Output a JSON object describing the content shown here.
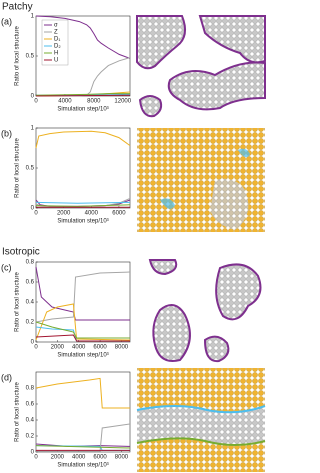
{
  "chart_data": [
    {
      "type": "line",
      "section": "Patchy",
      "panel_label": "(a)",
      "xlabel": "Simulation step/10³",
      "ylabel": "Ratio of local structure",
      "xlim": [
        0,
        13000
      ],
      "xticks": [
        0,
        4000,
        8000,
        12000
      ],
      "ylim": [
        0,
        1
      ],
      "yticks": [
        0,
        0.5,
        1
      ],
      "legend": "upper left",
      "series": [
        {
          "name": "σ",
          "color": "#7e2f8e",
          "x": [
            0,
            2000,
            4000,
            6000,
            7000,
            7500,
            8000,
            8500,
            9000,
            10000,
            11500,
            13000
          ],
          "values": [
            1.0,
            0.99,
            0.97,
            0.93,
            0.89,
            0.85,
            0.78,
            0.7,
            0.66,
            0.6,
            0.52,
            0.47
          ]
        },
        {
          "name": "Z",
          "color": "#a6a6a6",
          "x": [
            0,
            6000,
            7000,
            7500,
            8000,
            8500,
            9000,
            10000,
            11500,
            13000
          ],
          "values": [
            0,
            0,
            0.01,
            0.05,
            0.18,
            0.25,
            0.3,
            0.38,
            0.44,
            0.48
          ]
        },
        {
          "name": "D₁",
          "color": "#edb120",
          "x": [
            0,
            7000,
            10000,
            13000
          ],
          "values": [
            0,
            0.01,
            0.03,
            0.05
          ]
        },
        {
          "name": "D₂",
          "color": "#4dbeee",
          "x": [
            0,
            7000,
            13000
          ],
          "values": [
            0.01,
            0.01,
            0.02
          ]
        },
        {
          "name": "H",
          "color": "#77ac30",
          "x": [
            0,
            7000,
            10000,
            13000
          ],
          "values": [
            0.01,
            0.02,
            0.03,
            0.03
          ]
        },
        {
          "name": "U",
          "color": "#a2142f",
          "x": [
            0,
            13000
          ],
          "values": [
            0,
            0.01
          ]
        }
      ]
    },
    {
      "type": "line",
      "panel_label": "(b)",
      "xlabel": "Simulation step/10³",
      "ylabel": "Ratio of local structure",
      "xlim": [
        0,
        6800
      ],
      "xticks": [
        0,
        2000,
        4000,
        6000
      ],
      "ylim": [
        0,
        1
      ],
      "yticks": [
        0,
        0.5,
        1
      ],
      "series": [
        {
          "name": "σ",
          "color": "#7e2f8e",
          "x": [
            0,
            300,
            1000,
            3000,
            5000,
            6000,
            6800
          ],
          "values": [
            0.1,
            0.04,
            0.02,
            0.02,
            0.03,
            0.05,
            0.1
          ]
        },
        {
          "name": "Z",
          "color": "#a6a6a6",
          "x": [
            0,
            300,
            1000,
            3000,
            5000,
            6000,
            6800
          ],
          "values": [
            0.05,
            0.03,
            0.02,
            0.02,
            0.03,
            0.06,
            0.12
          ]
        },
        {
          "name": "D₁",
          "color": "#edb120",
          "x": [
            0,
            200,
            1000,
            2000,
            4000,
            5000,
            6000,
            6800
          ],
          "values": [
            0.75,
            0.9,
            0.93,
            0.95,
            0.96,
            0.94,
            0.88,
            0.78
          ]
        },
        {
          "name": "D₂",
          "color": "#4dbeee",
          "x": [
            0,
            3000,
            6800
          ],
          "values": [
            0.07,
            0.06,
            0.07
          ]
        },
        {
          "name": "H",
          "color": "#77ac30",
          "x": [
            0,
            3000,
            6800
          ],
          "values": [
            0.03,
            0.02,
            0.04
          ]
        },
        {
          "name": "U",
          "color": "#a2142f",
          "x": [
            0,
            6800
          ],
          "values": [
            0.01,
            0.01
          ]
        }
      ]
    },
    {
      "type": "line",
      "section": "Isotropic",
      "panel_label": "(c)",
      "xlabel": "Simulation step/10³",
      "ylabel": "Ratio of local structure",
      "xlim": [
        0,
        8800
      ],
      "xticks": [
        0,
        2000,
        4000,
        6000,
        8000
      ],
      "ylim": [
        0,
        0.8
      ],
      "yticks": [
        0,
        0.2,
        0.4,
        0.6,
        0.8
      ],
      "series": [
        {
          "name": "σ",
          "color": "#7e2f8e",
          "x": [
            0,
            500,
            1500,
            3500,
            3700,
            8800
          ],
          "values": [
            0.75,
            0.45,
            0.35,
            0.3,
            0.22,
            0.22
          ]
        },
        {
          "name": "Z",
          "color": "#a6a6a6",
          "x": [
            0,
            1500,
            3500,
            3700,
            6000,
            8800
          ],
          "values": [
            0.2,
            0.23,
            0.25,
            0.65,
            0.69,
            0.7
          ]
        },
        {
          "name": "D₁",
          "color": "#edb120",
          "x": [
            0,
            1000,
            2000,
            3500,
            3800,
            8800
          ],
          "values": [
            0.02,
            0.3,
            0.35,
            0.38,
            0.03,
            0.02
          ]
        },
        {
          "name": "D₂",
          "color": "#4dbeee",
          "x": [
            0,
            1500,
            3500,
            3800,
            8800
          ],
          "values": [
            0.15,
            0.13,
            0.12,
            0.01,
            0.01
          ]
        },
        {
          "name": "H",
          "color": "#77ac30",
          "x": [
            0,
            1500,
            3500,
            3800,
            8800
          ],
          "values": [
            0.2,
            0.15,
            0.1,
            0.04,
            0.04
          ]
        },
        {
          "name": "U",
          "color": "#a2142f",
          "x": [
            0,
            3500,
            3800,
            8800
          ],
          "values": [
            0.05,
            0.07,
            0.01,
            0.01
          ]
        }
      ]
    },
    {
      "type": "line",
      "panel_label": "(d)",
      "xlabel": "Simulation step/10³",
      "ylabel": "Ratio of local structure",
      "xlim": [
        0,
        8800
      ],
      "xticks": [
        0,
        2000,
        4000,
        6000,
        8000
      ],
      "ylim": [
        0,
        1
      ],
      "yticks": [
        0,
        0.2,
        0.4,
        0.6,
        0.8
      ],
      "series": [
        {
          "name": "σ",
          "color": "#7e2f8e",
          "x": [
            0,
            3000,
            6000,
            8800
          ],
          "values": [
            0.1,
            0.07,
            0.08,
            0.07
          ]
        },
        {
          "name": "Z",
          "color": "#a6a6a6",
          "x": [
            0,
            6000,
            6200,
            8800
          ],
          "values": [
            0.01,
            0.01,
            0.3,
            0.35
          ]
        },
        {
          "name": "D₁",
          "color": "#edb120",
          "x": [
            0,
            2000,
            5000,
            6000,
            6200,
            8800
          ],
          "values": [
            0.8,
            0.85,
            0.9,
            0.92,
            0.55,
            0.55
          ]
        },
        {
          "name": "D₂",
          "color": "#4dbeee",
          "x": [
            0,
            6000,
            6200,
            8800
          ],
          "values": [
            0.08,
            0.07,
            0.02,
            0.02
          ]
        },
        {
          "name": "H",
          "color": "#77ac30",
          "x": [
            0,
            6000,
            8800
          ],
          "values": [
            0.08,
            0.06,
            0.05
          ]
        },
        {
          "name": "U",
          "color": "#a2142f",
          "x": [
            0,
            8800
          ],
          "values": [
            0.02,
            0.02
          ]
        }
      ]
    }
  ]
}
